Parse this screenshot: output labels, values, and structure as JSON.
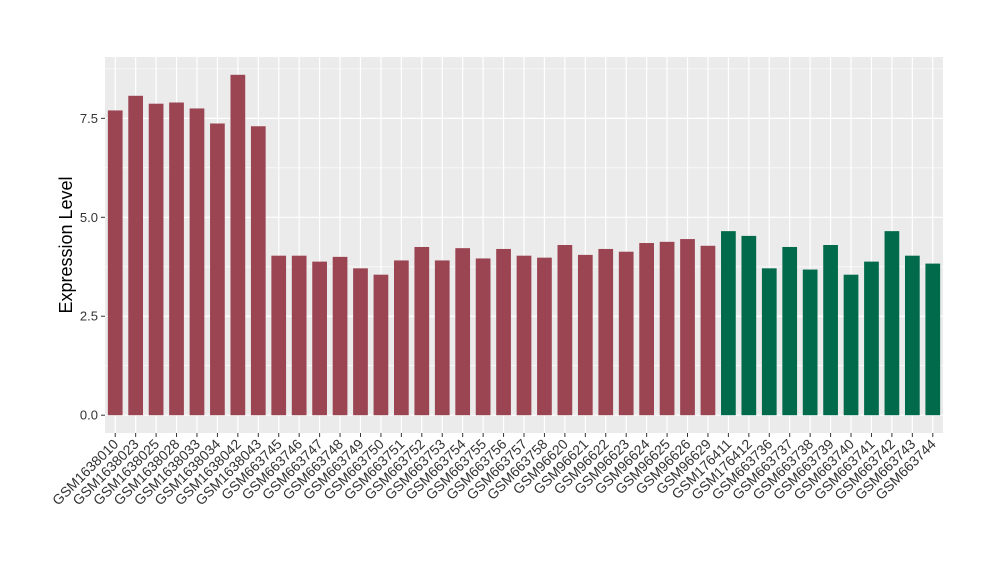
{
  "chart_data": {
    "type": "bar",
    "title": "",
    "xlabel": "",
    "ylabel": "Expression Level",
    "ylim": [
      -0.45,
      9.05
    ],
    "yticks": [
      0.0,
      2.5,
      5.0,
      7.5
    ],
    "ytick_labels": [
      "0.0",
      "2.5",
      "5.0",
      "7.5"
    ],
    "grid": true,
    "legend": "none",
    "categories": [
      "GSM1638010",
      "GSM1638023",
      "GSM1638025",
      "GSM1638028",
      "GSM1638033",
      "GSM1638034",
      "GSM1638042",
      "GSM1638043",
      "GSM663745",
      "GSM663746",
      "GSM663747",
      "GSM663748",
      "GSM663749",
      "GSM663750",
      "GSM663751",
      "GSM663752",
      "GSM663753",
      "GSM663754",
      "GSM663755",
      "GSM663756",
      "GSM663757",
      "GSM663758",
      "GSM96620",
      "GSM96621",
      "GSM96622",
      "GSM96623",
      "GSM96624",
      "GSM96625",
      "GSM96626",
      "GSM96629",
      "GSM176411",
      "GSM176412",
      "GSM663736",
      "GSM663737",
      "GSM663738",
      "GSM663739",
      "GSM663740",
      "GSM663741",
      "GSM663742",
      "GSM663743",
      "GSM663744"
    ],
    "values": [
      7.7,
      8.07,
      7.87,
      7.9,
      7.75,
      7.37,
      8.6,
      7.3,
      4.03,
      4.03,
      3.88,
      4.0,
      3.71,
      3.55,
      3.91,
      4.25,
      3.91,
      4.22,
      3.96,
      4.2,
      4.03,
      3.98,
      4.3,
      4.05,
      4.2,
      4.13,
      4.35,
      4.38,
      4.45,
      4.28,
      4.65,
      4.53,
      3.71,
      4.25,
      3.68,
      4.3,
      3.55,
      3.88,
      4.65,
      4.03,
      3.83
    ],
    "groups": [
      "a",
      "a",
      "a",
      "a",
      "a",
      "a",
      "a",
      "a",
      "a",
      "a",
      "a",
      "a",
      "a",
      "a",
      "a",
      "a",
      "a",
      "a",
      "a",
      "a",
      "a",
      "a",
      "a",
      "a",
      "a",
      "a",
      "a",
      "a",
      "a",
      "a",
      "b",
      "b",
      "b",
      "b",
      "b",
      "b",
      "b",
      "b",
      "b",
      "b",
      "b"
    ],
    "group_colors": {
      "a": "#9B4452",
      "b": "#006A4B"
    },
    "panel_color": "#EBEBEB",
    "grid_color": "#FFFFFF"
  }
}
